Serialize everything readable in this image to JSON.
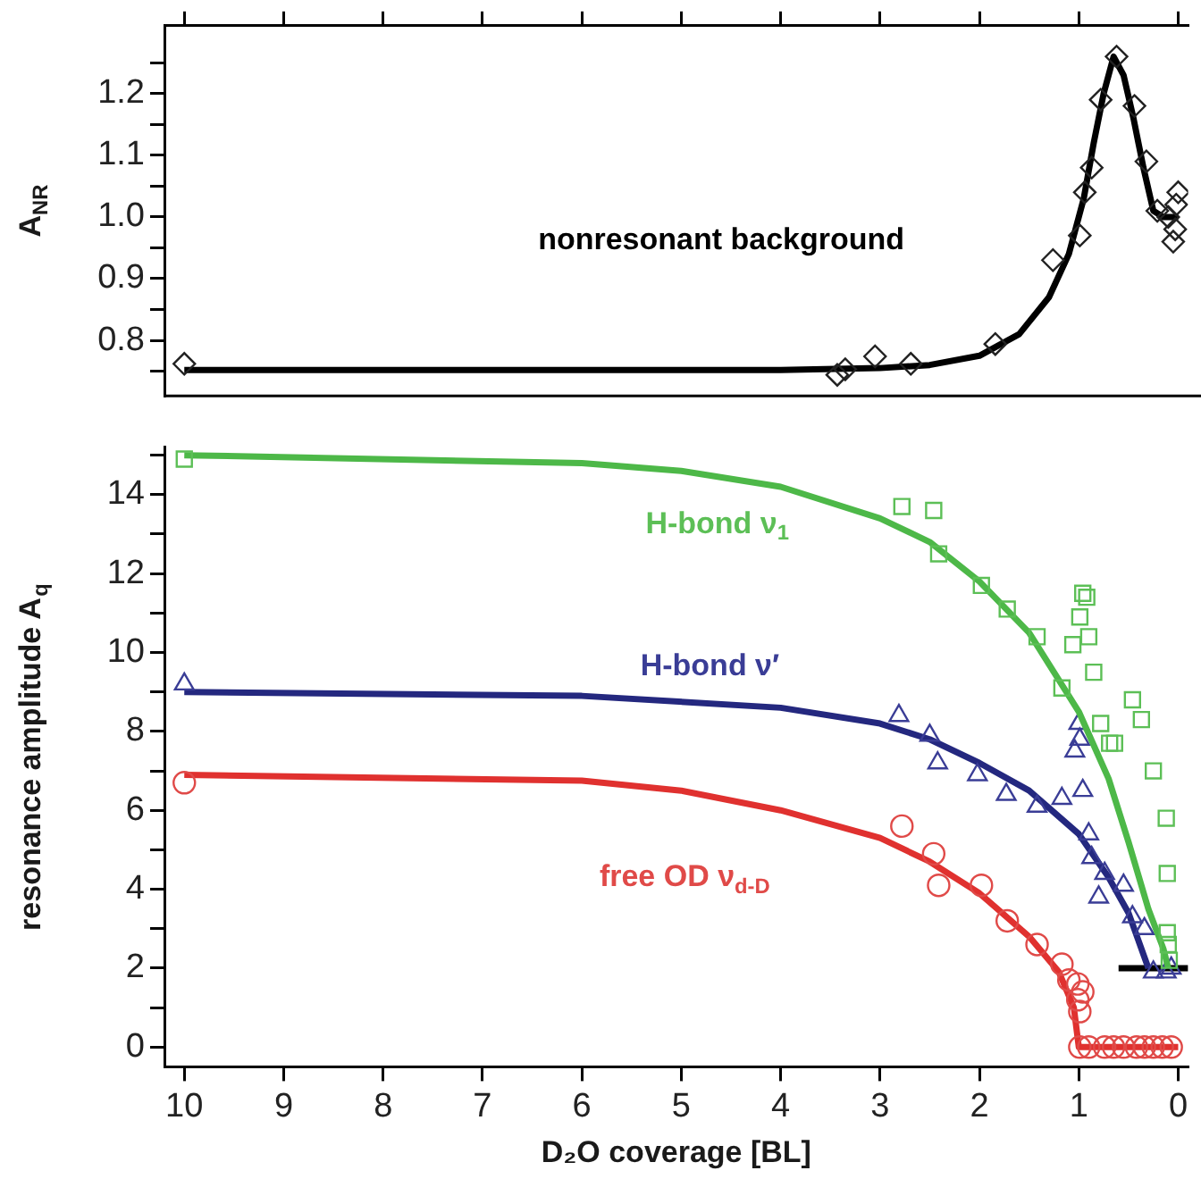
{
  "chart_data": [
    {
      "type": "scatter",
      "ylabel": "A$_{NR}$",
      "xlim": [
        10.2,
        -0.1
      ],
      "ylim": [
        0.71,
        1.31
      ],
      "xticks": [
        {
          "value": 0,
          "label": null
        },
        {
          "value": 1,
          "label": null
        },
        {
          "value": 2,
          "label": null
        },
        {
          "value": 3,
          "label": null
        },
        {
          "value": 4,
          "label": null
        },
        {
          "value": 5,
          "label": null
        },
        {
          "value": 6,
          "label": null
        },
        {
          "value": 7,
          "label": null
        },
        {
          "value": 8,
          "label": null
        },
        {
          "value": 9,
          "label": null
        },
        {
          "value": 10,
          "label": null
        }
      ],
      "yticks": [
        {
          "value": 0.75,
          "label": null
        },
        0.8,
        {
          "value": 0.85,
          "label": null
        },
        0.9,
        {
          "value": 0.95,
          "label": null
        },
        {
          "value": 1.0,
          "label": "1.0"
        },
        {
          "value": 1.05,
          "label": null
        },
        1.1,
        {
          "value": 1.15,
          "label": null
        },
        1.2,
        {
          "value": 1.25,
          "label": null
        }
      ],
      "tick_labels": "y",
      "grid": false,
      "legend": false,
      "series": [
        {
          "name": "nonresonant background",
          "type": "scatter",
          "marker": "diamond",
          "color": "#222222",
          "x": [
            10,
            3.43,
            3.35,
            3.05,
            2.69,
            1.84,
            1.26,
            0.99,
            0.94,
            0.87,
            0.78,
            0.62,
            0.44,
            0.32,
            0.21,
            0.1,
            0.05,
            0.03,
            0.02,
            0
          ],
          "values": [
            0.762,
            0.744,
            0.753,
            0.774,
            0.762,
            0.794,
            0.93,
            0.97,
            1.04,
            1.08,
            1.19,
            1.26,
            1.18,
            1.09,
            1.01,
            1.0,
            0.96,
            0.98,
            1.02,
            1.04
          ]
        },
        {
          "type": "line",
          "marker": "none",
          "color": "#000000",
          "x": [
            10,
            4,
            3,
            2.5,
            2,
            1.6,
            1.3,
            1.1,
            0.95,
            0.85,
            0.75,
            0.65,
            0.55,
            0.45,
            0.35,
            0.25,
            0.15,
            0
          ],
          "values": [
            0.752,
            0.752,
            0.755,
            0.76,
            0.775,
            0.81,
            0.87,
            0.94,
            1.03,
            1.12,
            1.2,
            1.26,
            1.23,
            1.16,
            1.08,
            1.01,
            1.0,
            1.0
          ]
        }
      ]
    },
    {
      "type": "scatter",
      "xlabel": "D₂O coverage [BL]",
      "ylabel": "resonance amplitude A$_{q}$",
      "xlim": [
        10.2,
        -0.1
      ],
      "ylim": [
        -0.5,
        15.2
      ],
      "xticks": [
        0,
        1,
        2,
        3,
        4,
        5,
        6,
        7,
        8,
        9,
        10
      ],
      "yticks": [
        0,
        {
          "value": 1,
          "label": null
        },
        2,
        {
          "value": 3,
          "label": null
        },
        4,
        {
          "value": 5,
          "label": null
        },
        6,
        {
          "value": 7,
          "label": null
        },
        8,
        {
          "value": 9,
          "label": null
        },
        10,
        {
          "value": 11,
          "label": null
        },
        12,
        {
          "value": 13,
          "label": null
        },
        14,
        {
          "value": 15,
          "label": null
        }
      ],
      "grid": false,
      "legend": false,
      "series": [
        {
          "name": "H-bond ν$_{1}$",
          "type": "scatter",
          "marker": "square",
          "color": "#5cbf56",
          "x": [
            10,
            2.78,
            2.46,
            2.41,
            1.98,
            1.72,
            1.42,
            1.17,
            1.06,
            0.99,
            0.96,
            0.92,
            0.9,
            0.85,
            0.78,
            0.69,
            0.64,
            0.46,
            0.37,
            0.25,
            0.12,
            0.11,
            0.11,
            0.1,
            0.09
          ],
          "values": [
            14.9,
            13.7,
            13.6,
            12.5,
            11.7,
            11.1,
            10.4,
            9.1,
            10.2,
            10.9,
            11.5,
            11.4,
            10.4,
            9.5,
            8.2,
            7.7,
            7.7,
            8.8,
            8.3,
            7.0,
            5.8,
            4.4,
            2.9,
            2.6,
            2.2
          ]
        },
        {
          "type": "line",
          "marker": "none",
          "color": "#4db848",
          "x": [
            10,
            6,
            5,
            4,
            3,
            2.5,
            2,
            1.5,
            1,
            0.7,
            0.5,
            0.3,
            0.15,
            0.1
          ],
          "values": [
            15,
            14.8,
            14.6,
            14.2,
            13.4,
            12.8,
            11.8,
            10.5,
            8.5,
            6.8,
            5.2,
            3.5,
            2.5,
            2.0
          ]
        },
        {
          "name": "H-bond ν′",
          "type": "scatter",
          "marker": "triangle",
          "color": "#3a3d96",
          "x": [
            10,
            2.81,
            2.5,
            2.42,
            2.02,
            1.73,
            1.42,
            1.17,
            0.96,
            1.0,
            0.99,
            1.04,
            0.9,
            0.87,
            0.74,
            0.8,
            0.55,
            0.46,
            0.34,
            0.25,
            0.12,
            0.07
          ],
          "values": [
            9.2,
            8.4,
            7.9,
            7.2,
            6.9,
            6.4,
            6.1,
            6.3,
            6.5,
            8.2,
            7.8,
            7.5,
            5.4,
            4.8,
            4.4,
            3.8,
            4.1,
            3.3,
            3.0,
            1.9,
            1.9,
            2.0
          ]
        },
        {
          "type": "line",
          "marker": "none",
          "color": "#24287f",
          "x": [
            10,
            6,
            4,
            3,
            2.5,
            2,
            1.5,
            1,
            0.7,
            0.5,
            0.3
          ],
          "values": [
            9,
            8.9,
            8.6,
            8.2,
            7.8,
            7.2,
            6.5,
            5.4,
            4.3,
            3.4,
            2.0
          ]
        },
        {
          "type": "line",
          "marker": "none",
          "color": "#000000",
          "x": [
            0.6,
            -0.1
          ],
          "values": [
            2,
            2
          ]
        },
        {
          "name": "free OD ν$_{d-D}$",
          "type": "scatter",
          "marker": "circle",
          "color": "#e04a48",
          "x": [
            10,
            2.78,
            2.46,
            2.41,
            1.98,
            1.72,
            1.42,
            1.17,
            1.1,
            1.01,
            0.96,
            1.01,
            0.99,
            0.99,
            0.9,
            0.74,
            0.65,
            0.55,
            0.42,
            0.34,
            0.25,
            0.16,
            0.07
          ],
          "values": [
            6.7,
            5.6,
            4.9,
            4.1,
            4.1,
            3.2,
            2.6,
            2.1,
            1.7,
            1.6,
            1.4,
            1.2,
            0.9,
            0,
            0,
            0,
            0,
            0,
            0,
            0,
            0,
            0,
            0
          ]
        },
        {
          "type": "line",
          "marker": "none",
          "color": "#e0312f",
          "x": [
            10,
            6,
            5,
            4,
            3,
            2.5,
            2,
            1.5,
            1.2,
            1.05,
            1,
            0
          ],
          "values": [
            6.9,
            6.75,
            6.5,
            6.0,
            5.3,
            4.7,
            3.9,
            2.8,
            1.9,
            1.0,
            0,
            0
          ]
        }
      ]
    }
  ]
}
